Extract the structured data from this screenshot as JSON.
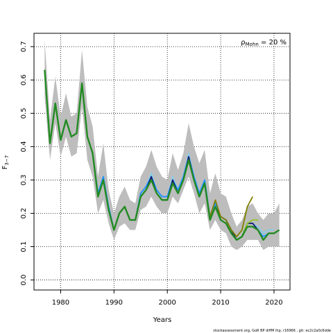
{
  "chart_data": {
    "type": "line",
    "xlabel": "Years",
    "ylabel": "F",
    "ylabel_subscript": "3−7",
    "xlim": [
      1975,
      2023
    ],
    "ylim": [
      -0.03,
      0.74
    ],
    "x_ticks": [
      1980,
      1990,
      2000,
      2010,
      2020
    ],
    "y_ticks": [
      0.0,
      0.1,
      0.2,
      0.3,
      0.4,
      0.5,
      0.6,
      0.7
    ],
    "x_tick_labels": [
      "1980",
      "1990",
      "2000",
      "2010",
      "2020"
    ],
    "y_tick_labels": [
      "0.0",
      "0.1",
      "0.2",
      "0.3",
      "0.4",
      "0.5",
      "0.6",
      "0.7"
    ],
    "grid": "dotted",
    "annotation": {
      "prefix": "ρ",
      "subscript": "Mohn",
      "suffix": " = 20 %",
      "placement": "top-right"
    },
    "footer": "stockassessment.org, GoR BP diffM lhp, r16966 , git: ec2c2a0c6dde",
    "colors": {
      "band": "#bdbdbd",
      "main": "#228b22",
      "peels": [
        "#87ceeb",
        "#1e90ff",
        "#191970",
        "#6b8e23",
        "#808000",
        "#9acd32"
      ]
    },
    "band": {
      "x": [
        1977,
        1978,
        1979,
        1980,
        1981,
        1982,
        1983,
        1984,
        1985,
        1986,
        1987,
        1988,
        1989,
        1990,
        1991,
        1992,
        1993,
        1994,
        1995,
        1996,
        1997,
        1998,
        1999,
        2000,
        2001,
        2002,
        2003,
        2004,
        2005,
        2006,
        2007,
        2008,
        2009,
        2010,
        2011,
        2012,
        2013,
        2014,
        2015,
        2016,
        2017,
        2018,
        2019,
        2020,
        2021
      ],
      "upper": [
        0.72,
        0.48,
        0.61,
        0.49,
        0.56,
        0.49,
        0.5,
        0.69,
        0.52,
        0.46,
        0.31,
        0.41,
        0.27,
        0.2,
        0.25,
        0.28,
        0.24,
        0.23,
        0.31,
        0.34,
        0.39,
        0.34,
        0.31,
        0.3,
        0.38,
        0.33,
        0.38,
        0.47,
        0.4,
        0.35,
        0.39,
        0.26,
        0.32,
        0.26,
        0.25,
        0.2,
        0.16,
        0.18,
        0.22,
        0.23,
        0.2,
        0.18,
        0.2,
        0.2,
        0.23
      ],
      "lower": [
        0.55,
        0.36,
        0.47,
        0.37,
        0.43,
        0.37,
        0.38,
        0.52,
        0.36,
        0.31,
        0.2,
        0.24,
        0.17,
        0.12,
        0.16,
        0.17,
        0.15,
        0.15,
        0.21,
        0.22,
        0.25,
        0.22,
        0.2,
        0.2,
        0.25,
        0.23,
        0.27,
        0.31,
        0.26,
        0.2,
        0.23,
        0.15,
        0.18,
        0.15,
        0.14,
        0.1,
        0.09,
        0.1,
        0.12,
        0.12,
        0.12,
        0.09,
        0.1,
        0.1,
        0.1
      ]
    },
    "series": [
      {
        "x": [
          1977,
          1978,
          1979,
          1980,
          1981,
          1982,
          1983,
          1984,
          1985,
          1986,
          1987,
          1988,
          1989,
          1990,
          1991,
          1992,
          1993,
          1994,
          1995,
          1996,
          1997,
          1998,
          1999,
          2000,
          2001,
          2002,
          2003,
          2004,
          2005,
          2006,
          2007,
          2008,
          2009,
          2010,
          2011,
          2012,
          2013,
          2014,
          2015,
          2016,
          2017,
          2018,
          2019,
          2020,
          2021
        ],
        "y": [
          0.63,
          0.41,
          0.53,
          0.42,
          0.48,
          0.43,
          0.44,
          0.59,
          0.43,
          0.38,
          0.25,
          0.3,
          0.21,
          0.15,
          0.2,
          0.22,
          0.18,
          0.18,
          0.25,
          0.27,
          0.3,
          0.26,
          0.24,
          0.24,
          0.29,
          0.26,
          0.3,
          0.36,
          0.3,
          0.25,
          0.29,
          0.18,
          0.22,
          0.18,
          0.17,
          0.14,
          0.12,
          0.13,
          0.16,
          0.16,
          0.15,
          0.12,
          0.14,
          0.14,
          0.15
        ]
      },
      {
        "x": [
          1977,
          1978,
          1979,
          1980,
          1981,
          1982,
          1983,
          1984,
          1985,
          1986,
          1987,
          1988,
          1989,
          1990,
          1991,
          1992,
          1993,
          1994,
          1995,
          1996,
          1997,
          1998,
          1999,
          2000,
          2001,
          2002,
          2003,
          2004,
          2005,
          2006,
          2007,
          2008,
          2009,
          2010,
          2011,
          2012,
          2013,
          2014,
          2015,
          2016,
          2017,
          2018,
          2019,
          2020
        ],
        "y": [
          0.63,
          0.41,
          0.53,
          0.42,
          0.48,
          0.43,
          0.44,
          0.59,
          0.43,
          0.38,
          0.26,
          0.31,
          0.22,
          0.15,
          0.2,
          0.22,
          0.18,
          0.18,
          0.26,
          0.28,
          0.32,
          0.27,
          0.25,
          0.25,
          0.31,
          0.27,
          0.31,
          0.38,
          0.31,
          0.26,
          0.3,
          0.19,
          0.23,
          0.19,
          0.18,
          0.15,
          0.12,
          0.13,
          0.17,
          0.17,
          0.16,
          0.14,
          0.15,
          0.15
        ]
      },
      {
        "x": [
          1977,
          1978,
          1979,
          1980,
          1981,
          1982,
          1983,
          1984,
          1985,
          1986,
          1987,
          1988,
          1989,
          1990,
          1991,
          1992,
          1993,
          1994,
          1995,
          1996,
          1997,
          1998,
          1999,
          2000,
          2001,
          2002,
          2003,
          2004,
          2005,
          2006,
          2007,
          2008,
          2009,
          2010,
          2011,
          2012,
          2013,
          2014,
          2015,
          2016,
          2017,
          2018,
          2019
        ],
        "y": [
          0.63,
          0.41,
          0.53,
          0.42,
          0.48,
          0.43,
          0.44,
          0.59,
          0.43,
          0.38,
          0.26,
          0.31,
          0.22,
          0.15,
          0.2,
          0.22,
          0.18,
          0.18,
          0.26,
          0.28,
          0.31,
          0.27,
          0.25,
          0.25,
          0.3,
          0.27,
          0.31,
          0.37,
          0.31,
          0.26,
          0.3,
          0.19,
          0.23,
          0.19,
          0.18,
          0.15,
          0.12,
          0.13,
          0.17,
          0.17,
          0.15,
          0.13,
          0.14
        ]
      },
      {
        "x": [
          1977,
          1978,
          1979,
          1980,
          1981,
          1982,
          1983,
          1984,
          1985,
          1986,
          1987,
          1988,
          1989,
          1990,
          1991,
          1992,
          1993,
          1994,
          1995,
          1996,
          1997,
          1998,
          1999,
          2000,
          2001,
          2002,
          2003,
          2004,
          2005,
          2006,
          2007,
          2008,
          2009,
          2010,
          2011,
          2012,
          2013,
          2014,
          2015,
          2016,
          2017,
          2018
        ],
        "y": [
          0.63,
          0.41,
          0.53,
          0.42,
          0.48,
          0.43,
          0.44,
          0.59,
          0.43,
          0.38,
          0.25,
          0.3,
          0.21,
          0.15,
          0.2,
          0.22,
          0.18,
          0.18,
          0.25,
          0.27,
          0.31,
          0.26,
          0.24,
          0.24,
          0.3,
          0.26,
          0.3,
          0.37,
          0.3,
          0.25,
          0.29,
          0.18,
          0.22,
          0.19,
          0.18,
          0.15,
          0.12,
          0.13,
          0.17,
          0.17,
          0.15,
          0.12
        ]
      },
      {
        "x": [
          1977,
          1978,
          1979,
          1980,
          1981,
          1982,
          1983,
          1984,
          1985,
          1986,
          1987,
          1988,
          1989,
          1990,
          1991,
          1992,
          1993,
          1994,
          1995,
          1996,
          1997,
          1998,
          1999,
          2000,
          2001,
          2002,
          2003,
          2004,
          2005,
          2006,
          2007,
          2008,
          2009,
          2010,
          2011,
          2012,
          2013,
          2014,
          2015,
          2016,
          2017
        ],
        "y": [
          0.63,
          0.41,
          0.53,
          0.42,
          0.48,
          0.43,
          0.44,
          0.59,
          0.43,
          0.38,
          0.25,
          0.3,
          0.21,
          0.15,
          0.2,
          0.22,
          0.18,
          0.18,
          0.25,
          0.27,
          0.3,
          0.26,
          0.24,
          0.24,
          0.29,
          0.26,
          0.3,
          0.36,
          0.3,
          0.25,
          0.29,
          0.18,
          0.22,
          0.18,
          0.17,
          0.14,
          0.12,
          0.13,
          0.17,
          0.18,
          0.18
        ]
      },
      {
        "x": [
          1977,
          1978,
          1979,
          1980,
          1981,
          1982,
          1983,
          1984,
          1985,
          1986,
          1987,
          1988,
          1989,
          1990,
          1991,
          1992,
          1993,
          1994,
          1995,
          1996,
          1997,
          1998,
          1999,
          2000,
          2001,
          2002,
          2003,
          2004,
          2005,
          2006,
          2007,
          2008,
          2009,
          2010,
          2011,
          2012,
          2013,
          2014,
          2015,
          2016
        ],
        "y": [
          0.63,
          0.41,
          0.53,
          0.42,
          0.48,
          0.43,
          0.44,
          0.59,
          0.43,
          0.38,
          0.25,
          0.3,
          0.21,
          0.15,
          0.2,
          0.22,
          0.18,
          0.18,
          0.25,
          0.27,
          0.3,
          0.26,
          0.24,
          0.24,
          0.29,
          0.26,
          0.3,
          0.36,
          0.3,
          0.25,
          0.29,
          0.19,
          0.24,
          0.19,
          0.18,
          0.15,
          0.13,
          0.15,
          0.22,
          0.25
        ]
      },
      {
        "x": [
          1977,
          1978,
          1979,
          1980,
          1981,
          1982,
          1983,
          1984,
          1985,
          1986,
          1987,
          1988,
          1989,
          1990,
          1991,
          1992,
          1993,
          1994,
          1995,
          1996,
          1997,
          1998,
          1999,
          2000,
          2001,
          2002,
          2003,
          2004,
          2005,
          2006,
          2007,
          2008,
          2009,
          2010,
          2011,
          2012,
          2013,
          2014,
          2015,
          2016,
          2017
        ],
        "y": [
          0.63,
          0.41,
          0.53,
          0.42,
          0.48,
          0.43,
          0.44,
          0.59,
          0.43,
          0.38,
          0.25,
          0.3,
          0.21,
          0.15,
          0.2,
          0.22,
          0.18,
          0.18,
          0.25,
          0.27,
          0.3,
          0.26,
          0.24,
          0.24,
          0.29,
          0.26,
          0.3,
          0.36,
          0.3,
          0.25,
          0.29,
          0.18,
          0.22,
          0.18,
          0.17,
          0.14,
          0.12,
          0.13,
          0.17,
          0.18,
          0.18
        ]
      }
    ]
  }
}
